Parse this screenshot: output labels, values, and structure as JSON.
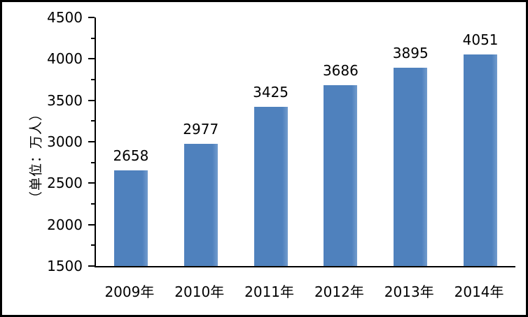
{
  "chart_data": {
    "type": "bar",
    "title": "",
    "categories": [
      "2009年",
      "2010年",
      "2011年",
      "2012年",
      "2013年",
      "2014年"
    ],
    "values": [
      2658,
      2977,
      3425,
      3686,
      3895,
      4051
    ],
    "ylabel": "（单位：万人）",
    "xlabel": "",
    "ylim": [
      1500,
      4500
    ],
    "ytick_major_step": 500,
    "ytick_minor_step": 250,
    "ytick_labels": [
      "1500",
      "2000",
      "2500",
      "3000",
      "3500",
      "4000",
      "4500"
    ],
    "grid": false,
    "legend_position": "none",
    "bar_color": "#4f81bd",
    "bar_edge_highlight": "#729ccd",
    "axis_color": "#000000",
    "text_color": "#000000",
    "background_color": "#ffffff"
  }
}
